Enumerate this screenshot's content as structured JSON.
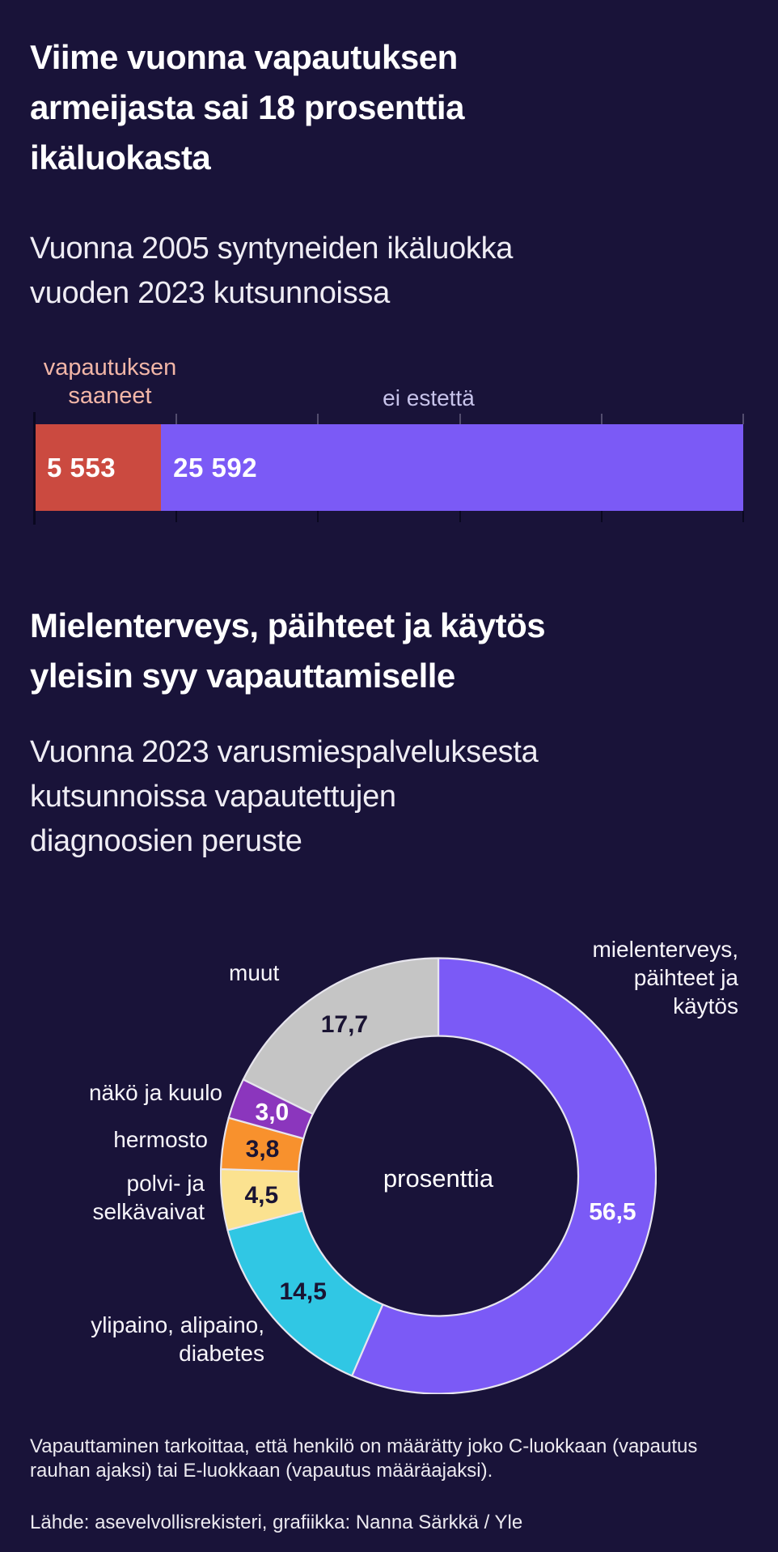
{
  "page": {
    "section1": {
      "title": "Viime vuonna vapautuksen\narmeijasta sai 18 prosenttia\nikäluokasta",
      "subtitle": "Vuonna 2005 syntyneiden ikäluokka\nvuoden 2023 kutsunnoissa"
    },
    "section2": {
      "title": "Mielenterveys, päihteet ja käytös\nyleisin syy vapauttamiselle",
      "subtitle": "Vuonna 2023 varusmiespalveluksesta\nkutsunnoissa vapautettujen\ndiagnoosien peruste"
    },
    "footer": {
      "note": "Vapauttaminen tarkoittaa, että henkilö on määrätty joko C-luokkaan (vapautus\nrauhan ajaksi) tai E-luokkaan (vapautus määräajaksi).",
      "source": "Lähde: asevelvollisrekisteri, grafiikka: Nanna Särkkä / Yle"
    },
    "colors": {
      "background": "#191339",
      "released_bar": "#cb4a40",
      "no_obstacle_bar": "#7b5af6",
      "released_label": "#f2b6a7",
      "no_obstacle_label": "#c7c3ea",
      "segment_border": "#e7e5ee",
      "dark_value_text": "#1a1433"
    }
  },
  "chart_data": [
    {
      "type": "bar",
      "orientation": "horizontal_stacked",
      "title": "Vuonna 2005 syntyneiden ikäluokka vuoden 2023 kutsunnoissa",
      "categories": [
        "vapautuksen saaneet",
        "ei estettä"
      ],
      "values": [
        5553,
        25592
      ],
      "value_labels": [
        "5 553",
        "25 592"
      ],
      "colors": [
        "#cb4a40",
        "#7b5af6"
      ],
      "category_label_colors": [
        "#f2b6a7",
        "#c7c3ea"
      ],
      "category_label_texts": [
        "vapautuksen\nsaaneet",
        "ei estettä"
      ],
      "axis": {
        "min": 0,
        "max": 31145,
        "tick_divisions": 5,
        "grid": "ticks-only"
      }
    },
    {
      "type": "pie",
      "subtype": "donut",
      "title": "Vuonna 2023 varusmiespalveluksesta kutsunnoissa vapautettujen diagnoosien peruste",
      "unit_label": "prosenttia",
      "start_angle_deg": 0,
      "direction": "clockwise",
      "segments": [
        {
          "label": "mielenterveys,\npäihteet ja\nkäytös",
          "value": 56.5,
          "value_label": "56,5",
          "color": "#7b5af6",
          "value_color": "#ffffff"
        },
        {
          "label": "ylipaino, alipaino,\ndiabetes",
          "value": 14.5,
          "value_label": "14,5",
          "color": "#30c7e4",
          "value_color": "#1a1433"
        },
        {
          "label": "polvi- ja\nselkävaivat",
          "value": 4.5,
          "value_label": "4,5",
          "color": "#fbe290",
          "value_color": "#1a1433"
        },
        {
          "label": "hermosto",
          "value": 3.8,
          "value_label": "3,8",
          "color": "#f8912d",
          "value_color": "#1a1433"
        },
        {
          "label": "näkö ja kuulo",
          "value": 3.0,
          "value_label": "3,0",
          "color": "#8b36bd",
          "value_color": "#ffffff"
        },
        {
          "label": "muut",
          "value": 17.7,
          "value_label": "17,7",
          "color": "#c5c5c5",
          "value_color": "#1a1433"
        }
      ]
    }
  ]
}
